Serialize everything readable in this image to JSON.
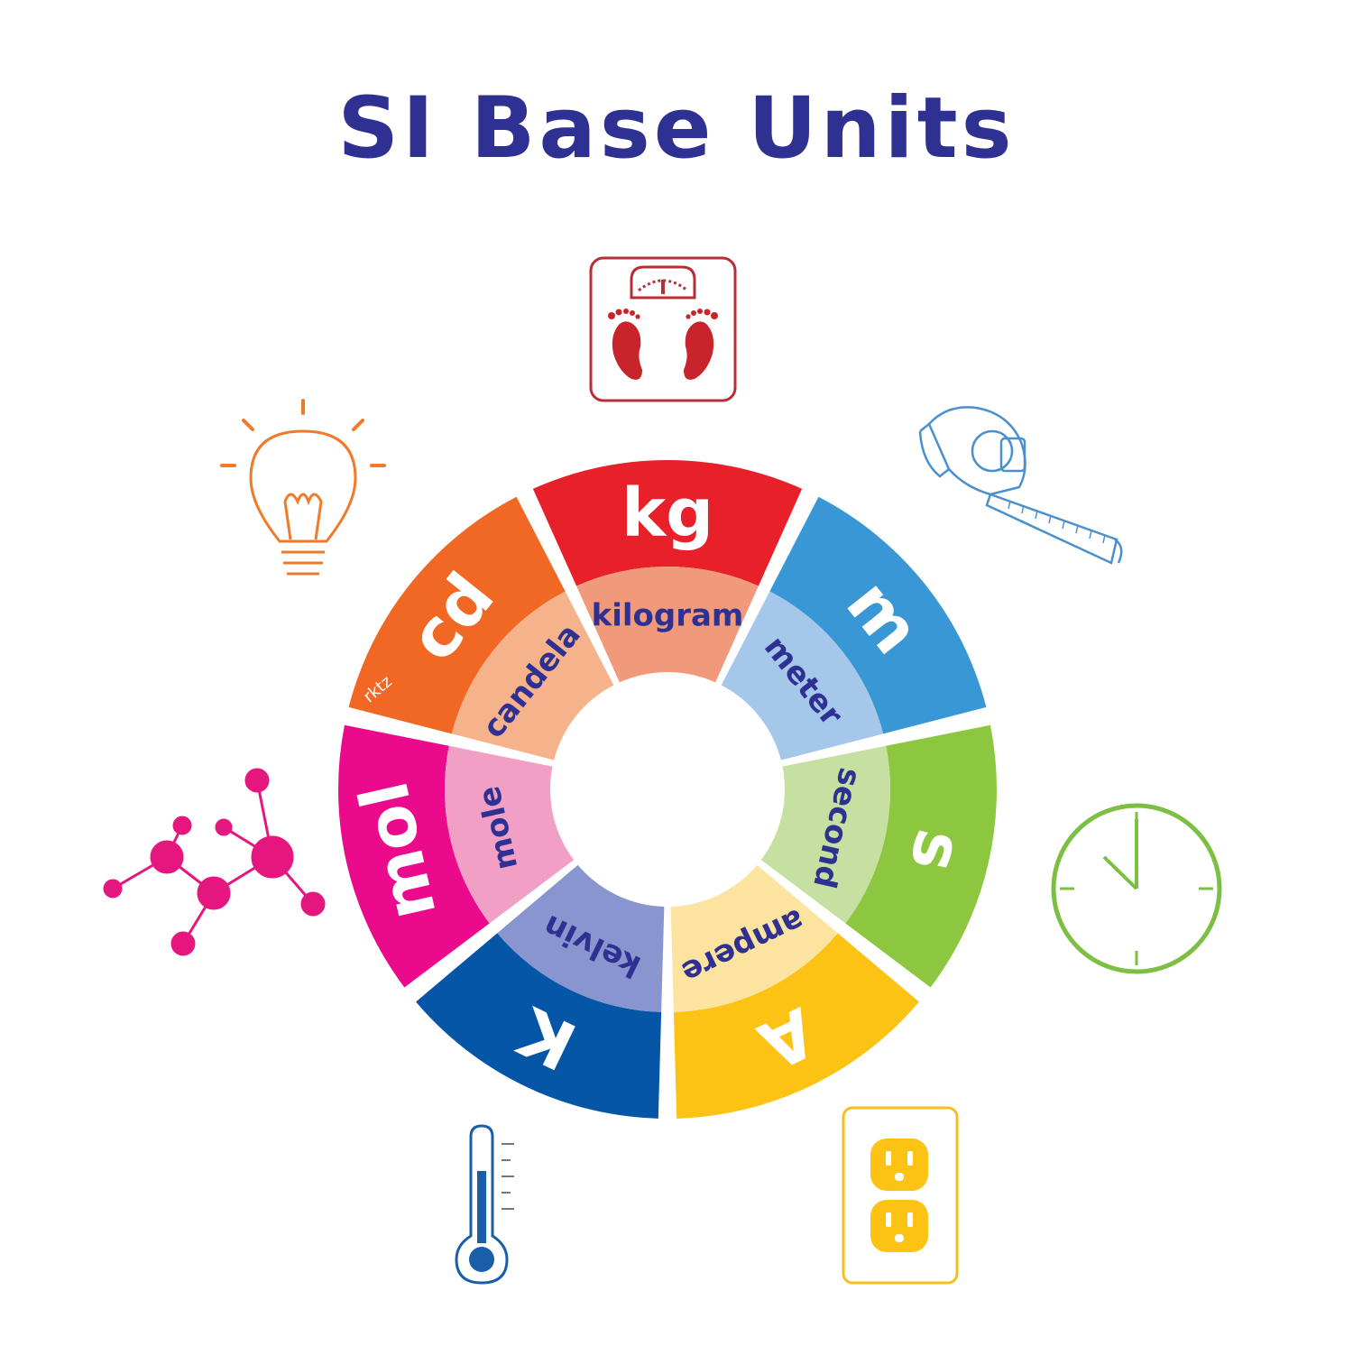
{
  "title": "SI Base Units",
  "segments": [
    {
      "symbol": "kg",
      "name": "kilogram",
      "outer_color": "#e8202a",
      "inner_color": "#f0997b",
      "name_color": "#2e3192",
      "icon": "weighing-scale-icon",
      "icon_color": "#b72f36"
    },
    {
      "symbol": "m",
      "name": "meter",
      "outer_color": "#3a97d6",
      "inner_color": "#a4c7ea",
      "name_color": "#2e3192",
      "icon": "tape-measure-icon",
      "icon_color": "#4a90cf"
    },
    {
      "symbol": "s",
      "name": "second",
      "outer_color": "#8dc63f",
      "inner_color": "#c5e0a0",
      "name_color": "#2e3192",
      "icon": "clock-icon",
      "icon_color": "#7dbf43"
    },
    {
      "symbol": "A",
      "name": "ampere",
      "outer_color": "#fcc214",
      "inner_color": "#fde3a0",
      "name_color": "#2e3192",
      "icon": "power-outlet-icon",
      "icon_color": "#f4c01e"
    },
    {
      "symbol": "K",
      "name": "kelvin",
      "outer_color": "#0556a6",
      "inner_color": "#8895cf",
      "name_color": "#2e3192",
      "icon": "thermometer-icon",
      "icon_color": "#1b5ea8"
    },
    {
      "symbol": "mol",
      "name": "mole",
      "outer_color": "#ec0a8c",
      "inner_color": "#f29fc5",
      "name_color": "#2e3192",
      "icon": "molecule-icon",
      "icon_color": "#e5177f"
    },
    {
      "symbol": "cd",
      "name": "candela",
      "outer_color": "#f06824",
      "inner_color": "#f6b28b",
      "name_color": "#2e3192",
      "icon": "light-bulb-icon",
      "icon_color": "#f07a2a"
    }
  ],
  "signature": "rktz"
}
